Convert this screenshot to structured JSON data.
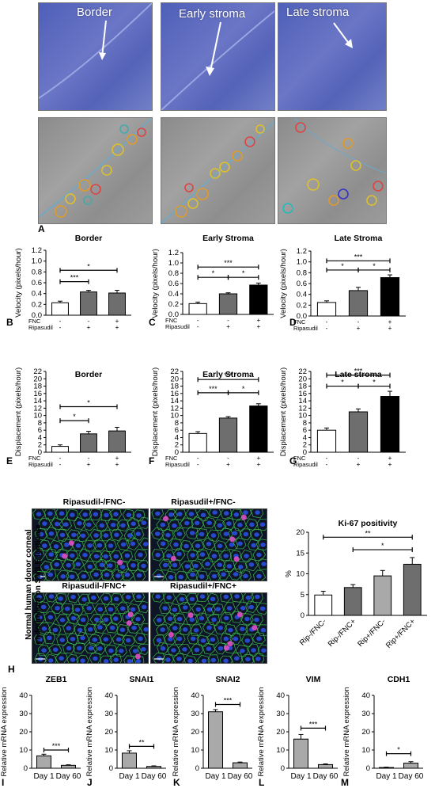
{
  "colors": {
    "microscopy_top": "#5a67bd",
    "microscopy_bottom": "#949494",
    "bar_white": "#ffffff",
    "bar_gray": "#6e6e6e",
    "bar_black": "#000000",
    "bar_lightgray": "#a9a9a9"
  },
  "panel_a": {
    "columns": [
      "Border",
      "Early stroma",
      "Late stroma"
    ],
    "label": "A"
  },
  "panel_h": {
    "row_label": "Normal human donor corneal endothelium on SMILE lenticule",
    "images": [
      "Ripasudil-/FNC-",
      "Ripasudil+/FNC-",
      "Ripasudil-/FNC+",
      "Ripasudil+/FNC+"
    ],
    "label": "H"
  },
  "conditions": {
    "fnc_label": "FNC",
    "rip_label": "Ripasudil",
    "fnc": [
      "-",
      "-",
      "+"
    ],
    "rip": [
      "-",
      "+",
      "+"
    ]
  },
  "chart_data": [
    {
      "id": "B",
      "type": "bar",
      "title": "Border",
      "ylabel": "Velocity (pixels/hour)",
      "ylim": [
        0,
        1.2
      ],
      "yticks": [
        "0.0",
        "0.2",
        "0.4",
        "0.6",
        "0.8",
        "1.0",
        "1.2"
      ],
      "values": [
        0.23,
        0.43,
        0.41
      ],
      "errors": [
        0.03,
        0.03,
        0.05
      ],
      "bar_colors": [
        "#ffffff",
        "#6e6e6e",
        "#6e6e6e"
      ],
      "sig": [
        {
          "from": 0,
          "to": 1,
          "label": "***",
          "y": 0.62
        },
        {
          "from": 0,
          "to": 2,
          "label": "*",
          "y": 0.83
        }
      ]
    },
    {
      "id": "C",
      "type": "bar",
      "title": "Early Stroma",
      "ylabel": "Velocity (pixels/hour)",
      "ylim": [
        0,
        1.2
      ],
      "yticks": [
        "0.0",
        "0.2",
        "0.4",
        "0.6",
        "0.8",
        "1.0",
        "1.2"
      ],
      "values": [
        0.21,
        0.4,
        0.57
      ],
      "errors": [
        0.03,
        0.02,
        0.04
      ],
      "bar_colors": [
        "#ffffff",
        "#6e6e6e",
        "#000000"
      ],
      "sig": [
        {
          "from": 0,
          "to": 1,
          "label": "*",
          "y": 0.72
        },
        {
          "from": 1,
          "to": 2,
          "label": "*",
          "y": 0.72
        },
        {
          "from": 0,
          "to": 2,
          "label": "***",
          "y": 0.92
        }
      ]
    },
    {
      "id": "D",
      "type": "bar",
      "title": "Late Stroma",
      "ylabel": "Velocity (pixels/hour)",
      "ylim": [
        0,
        1.2
      ],
      "yticks": [
        "0.0",
        "0.2",
        "0.4",
        "0.6",
        "0.8",
        "1.0",
        "1.2"
      ],
      "values": [
        0.25,
        0.47,
        0.71
      ],
      "errors": [
        0.03,
        0.06,
        0.05
      ],
      "bar_colors": [
        "#ffffff",
        "#6e6e6e",
        "#000000"
      ],
      "sig": [
        {
          "from": 0,
          "to": 1,
          "label": "*",
          "y": 0.85
        },
        {
          "from": 1,
          "to": 2,
          "label": "*",
          "y": 0.85
        },
        {
          "from": 0,
          "to": 2,
          "label": "***",
          "y": 1.02
        }
      ]
    },
    {
      "id": "E",
      "type": "bar",
      "title": "Border",
      "ylabel": "Displacement (pixels/hour)",
      "ylim": [
        0,
        22
      ],
      "yticks": [
        "0",
        "2",
        "4",
        "6",
        "8",
        "10",
        "12",
        "14",
        "16",
        "18",
        "20",
        "22"
      ],
      "values": [
        1.6,
        5.0,
        5.8
      ],
      "errors": [
        0.4,
        0.7,
        1.0
      ],
      "bar_colors": [
        "#ffffff",
        "#6e6e6e",
        "#6e6e6e"
      ],
      "sig": [
        {
          "from": 0,
          "to": 1,
          "label": "*",
          "y": 8.6
        },
        {
          "from": 0,
          "to": 2,
          "label": "*",
          "y": 12.4
        }
      ]
    },
    {
      "id": "F",
      "type": "bar",
      "title": "Early Stroma",
      "ylabel": "Displacement (pixels/hour)",
      "ylim": [
        0,
        22
      ],
      "yticks": [
        "0",
        "2",
        "4",
        "6",
        "8",
        "10",
        "12",
        "14",
        "16",
        "18",
        "20",
        "22"
      ],
      "values": [
        5.1,
        9.3,
        12.6
      ],
      "errors": [
        0.5,
        0.4,
        0.6
      ],
      "bar_colors": [
        "#ffffff",
        "#6e6e6e",
        "#000000"
      ],
      "sig": [
        {
          "from": 0,
          "to": 1,
          "label": "***",
          "y": 16.2
        },
        {
          "from": 1,
          "to": 2,
          "label": "*",
          "y": 16.2
        },
        {
          "from": 0,
          "to": 2,
          "label": "***",
          "y": 19.8
        }
      ]
    },
    {
      "id": "G",
      "type": "bar",
      "title": "Late stroma",
      "ylabel": "Displacement (pixels/hour)",
      "ylim": [
        0,
        22
      ],
      "yticks": [
        "0",
        "2",
        "4",
        "6",
        "8",
        "10",
        "12",
        "14",
        "16",
        "18",
        "20",
        "22"
      ],
      "values": [
        6.0,
        11.0,
        15.2
      ],
      "errors": [
        0.6,
        0.8,
        1.4
      ],
      "bar_colors": [
        "#ffffff",
        "#6e6e6e",
        "#000000"
      ],
      "sig": [
        {
          "from": 0,
          "to": 1,
          "label": "*",
          "y": 18.0
        },
        {
          "from": 1,
          "to": 2,
          "label": "*",
          "y": 18.0
        },
        {
          "from": 0,
          "to": 2,
          "label": "***",
          "y": 21.0
        }
      ]
    },
    {
      "id": "Ki67",
      "type": "bar",
      "title": "Ki-67 positivity",
      "ylabel": "%",
      "ylim": [
        0,
        20
      ],
      "yticks": [
        "0",
        "5",
        "10",
        "15",
        "20"
      ],
      "categories": [
        "Rip-/FNC-",
        "Rip-/FNC+",
        "Rip+/FNC-",
        "Rip+/FNC+"
      ],
      "values": [
        4.9,
        6.7,
        9.5,
        12.3
      ],
      "errors": [
        0.9,
        0.7,
        1.3,
        1.6
      ],
      "bar_colors": [
        "#ffffff",
        "#6e6e6e",
        "#a9a9a9",
        "#6e6e6e"
      ],
      "sig": [
        {
          "from": 0,
          "to": 3,
          "label": "**",
          "y": 18.8
        },
        {
          "from": 1,
          "to": 3,
          "label": "*",
          "y": 15.8
        }
      ]
    },
    {
      "id": "I",
      "type": "bar",
      "title": "ZEB1",
      "ylabel": "Relative mRNA expression",
      "ylim": [
        0,
        40
      ],
      "yticks": [
        "0",
        "10",
        "20",
        "30",
        "40"
      ],
      "categories": [
        "Day 1",
        "Day 60"
      ],
      "values": [
        6.8,
        1.6
      ],
      "errors": [
        0.9,
        0.3
      ],
      "bar_colors": [
        "#a9a9a9",
        "#a9a9a9"
      ],
      "sig": [
        {
          "from": 0,
          "to": 1,
          "label": "***",
          "y": 10
        }
      ]
    },
    {
      "id": "J",
      "type": "bar",
      "title": "SNAI1",
      "ylabel": "Relative mRNA expression",
      "ylim": [
        0,
        40
      ],
      "yticks": [
        "0",
        "10",
        "20",
        "30",
        "40"
      ],
      "categories": [
        "Day 1",
        "Day 60"
      ],
      "values": [
        8.3,
        1.0
      ],
      "errors": [
        1.3,
        0.3
      ],
      "bar_colors": [
        "#a9a9a9",
        "#a9a9a9"
      ],
      "sig": [
        {
          "from": 0,
          "to": 1,
          "label": "**",
          "y": 12
        }
      ]
    },
    {
      "id": "K",
      "type": "bar",
      "title": "SNAI2",
      "ylabel": "Relative mRNA expression",
      "ylim": [
        0,
        40
      ],
      "yticks": [
        "0",
        "10",
        "20",
        "30",
        "40"
      ],
      "categories": [
        "Day 1",
        "Day 60"
      ],
      "values": [
        31.0,
        3.0
      ],
      "errors": [
        1.2,
        0.4
      ],
      "bar_colors": [
        "#a9a9a9",
        "#a9a9a9"
      ],
      "sig": [
        {
          "from": 0,
          "to": 1,
          "label": "***",
          "y": 35
        }
      ]
    },
    {
      "id": "L",
      "type": "bar",
      "title": "VIM",
      "ylabel": "Relative mRNA expression",
      "ylim": [
        0,
        40
      ],
      "yticks": [
        "0",
        "10",
        "20",
        "30",
        "40"
      ],
      "categories": [
        "Day 1",
        "Day 60"
      ],
      "values": [
        16.0,
        2.0
      ],
      "errors": [
        2.5,
        0.4
      ],
      "bar_colors": [
        "#a9a9a9",
        "#a9a9a9"
      ],
      "sig": [
        {
          "from": 0,
          "to": 1,
          "label": "***",
          "y": 22
        }
      ]
    },
    {
      "id": "M",
      "type": "bar",
      "title": "CDH1",
      "ylabel": "Relative mRNA expression",
      "ylim": [
        0,
        40
      ],
      "yticks": [
        "0",
        "10",
        "20",
        "30",
        "40"
      ],
      "categories": [
        "Day 1",
        "Day 60"
      ],
      "values": [
        0.4,
        2.8
      ],
      "errors": [
        0.2,
        0.8
      ],
      "bar_colors": [
        "#a9a9a9",
        "#a9a9a9"
      ],
      "sig": [
        {
          "from": 0,
          "to": 1,
          "label": "*",
          "y": 8
        }
      ]
    }
  ]
}
